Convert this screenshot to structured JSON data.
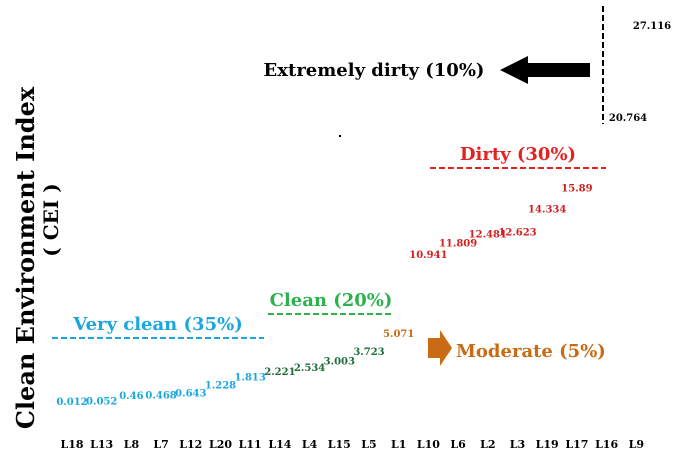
{
  "chart_data": {
    "type": "scatter",
    "ylabel": "Clean Environment Index",
    "ylabel_sub": "( CEI )",
    "categories": [
      "L18",
      "L13",
      "L8",
      "L7",
      "L12",
      "L20",
      "L11",
      "L14",
      "L4",
      "L15",
      "L5",
      "L1",
      "L10",
      "L6",
      "L2",
      "L3",
      "L19",
      "L17",
      "L16",
      "L9"
    ],
    "points": [
      {
        "cat": "L18",
        "label": "0.012",
        "group": "very_clean"
      },
      {
        "cat": "L13",
        "label": "0.052",
        "group": "very_clean"
      },
      {
        "cat": "L8",
        "label": "0.46",
        "group": "very_clean"
      },
      {
        "cat": "L7",
        "label": "0.468",
        "group": "very_clean"
      },
      {
        "cat": "L12",
        "label": "0.643",
        "group": "very_clean"
      },
      {
        "cat": "L20",
        "label": "1.228",
        "group": "very_clean"
      },
      {
        "cat": "L11",
        "label": "1.813",
        "group": "very_clean"
      },
      {
        "cat": "L14",
        "label": "2.221",
        "group": "clean"
      },
      {
        "cat": "L4",
        "label": "2.534",
        "group": "clean"
      },
      {
        "cat": "L15",
        "label": "3.003",
        "group": "clean"
      },
      {
        "cat": "L5",
        "label": "3.723",
        "group": "clean"
      },
      {
        "cat": "L1",
        "label": "5.071",
        "group": "moderate"
      },
      {
        "cat": "L10",
        "label": "10.941",
        "group": "dirty"
      },
      {
        "cat": "L6",
        "label": "11.809",
        "group": "dirty"
      },
      {
        "cat": "L2",
        "label": "12.481",
        "group": "dirty"
      },
      {
        "cat": "L3",
        "label": "12.623",
        "group": "dirty"
      },
      {
        "cat": "L19",
        "label": "14.334",
        "group": "dirty"
      },
      {
        "cat": "L17",
        "label": "15.89",
        "group": "dirty"
      },
      {
        "cat": "L16",
        "label": "20.764",
        "group": "extremely_dirty"
      },
      {
        "cat": "L9",
        "label": "27.116",
        "group": "extremely_dirty"
      }
    ],
    "groups": {
      "very_clean": {
        "label": "Very clean (35%)",
        "color": "#1aa7e0"
      },
      "clean": {
        "label": "Clean (20%)",
        "color": "#2bb24c"
      },
      "moderate": {
        "label": "Moderate (5%)",
        "color": "#c96b14"
      },
      "dirty": {
        "label": "Dirty (30%)",
        "color": "#e52222"
      },
      "extremely_dirty": {
        "label": "Extremely dirty (10%)",
        "color": "#000000"
      }
    },
    "value_colors": {
      "very_clean": "#1aa7e0",
      "clean": "#1f6b3a",
      "moderate": "#c96b14",
      "dirty": "#d41f1f",
      "extremely_dirty": "#000000"
    }
  }
}
